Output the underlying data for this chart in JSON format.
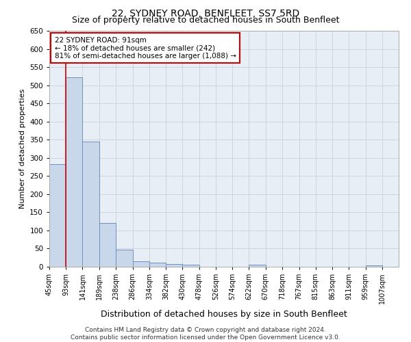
{
  "title": "22, SYDNEY ROAD, BENFLEET, SS7 5RD",
  "subtitle": "Size of property relative to detached houses in South Benfleet",
  "xlabel": "Distribution of detached houses by size in South Benfleet",
  "ylabel": "Number of detached properties",
  "footnote": "Contains HM Land Registry data © Crown copyright and database right 2024.\nContains public sector information licensed under the Open Government Licence v3.0.",
  "bar_color": "#c8d8ea",
  "bar_edge_color": "#7090b8",
  "grid_color": "#c8d0dc",
  "annotation_box_color": "#cc0000",
  "property_line_color": "#cc0000",
  "bins": [
    "45sqm",
    "93sqm",
    "141sqm",
    "189sqm",
    "238sqm",
    "286sqm",
    "334sqm",
    "382sqm",
    "430sqm",
    "478sqm",
    "526sqm",
    "574sqm",
    "622sqm",
    "670sqm",
    "718sqm",
    "767sqm",
    "815sqm",
    "863sqm",
    "911sqm",
    "959sqm",
    "1007sqm"
  ],
  "values": [
    283,
    522,
    344,
    120,
    48,
    16,
    12,
    8,
    5,
    0,
    0,
    0,
    6,
    0,
    0,
    0,
    0,
    0,
    0,
    4,
    0
  ],
  "bin_starts": [
    45,
    93,
    141,
    189,
    238,
    286,
    334,
    382,
    430,
    478,
    526,
    574,
    622,
    670,
    718,
    767,
    815,
    863,
    911,
    959,
    1007
  ],
  "bin_width": 48,
  "property_line_x": 93,
  "annotation_text": "22 SYDNEY ROAD: 91sqm\n← 18% of detached houses are smaller (242)\n81% of semi-detached houses are larger (1,088) →",
  "ylim": [
    0,
    650
  ],
  "xlim": [
    45,
    1055
  ],
  "yticks": [
    0,
    50,
    100,
    150,
    200,
    250,
    300,
    350,
    400,
    450,
    500,
    550,
    600,
    650
  ],
  "title_fontsize": 10,
  "subtitle_fontsize": 9,
  "ylabel_fontsize": 8,
  "xlabel_fontsize": 9,
  "footnote_fontsize": 6.5,
  "tick_fontsize": 7,
  "annotation_fontsize": 7.5
}
